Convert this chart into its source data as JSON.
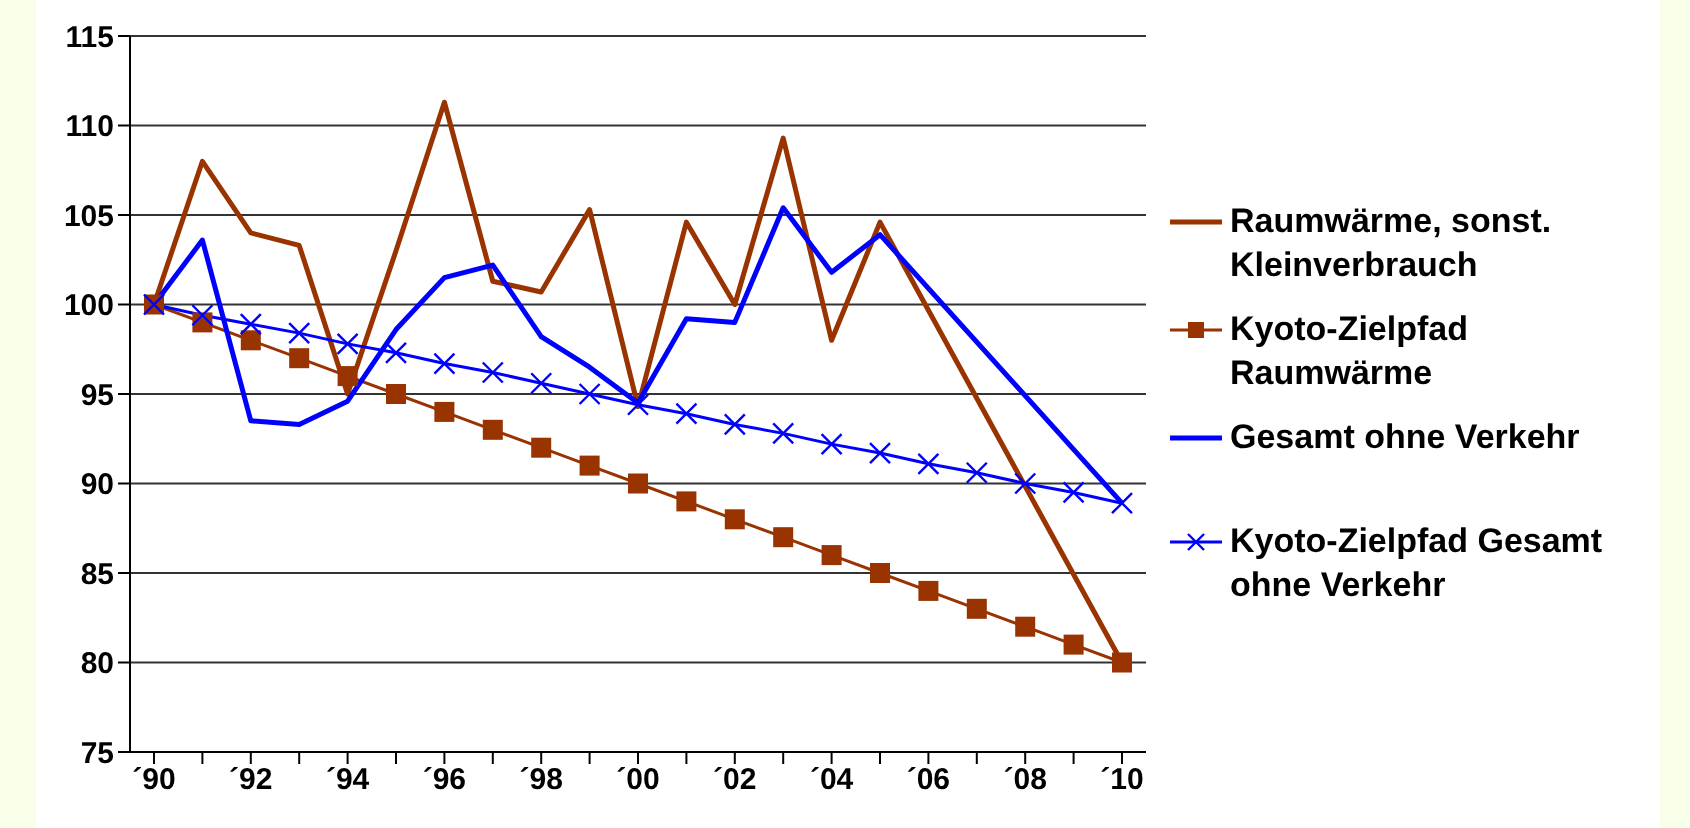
{
  "chart_data": {
    "type": "line",
    "categories": [
      "´90",
      null,
      "´92",
      null,
      "´94",
      null,
      "´96",
      null,
      "´98",
      null,
      "´00",
      null,
      "´02",
      null,
      "´04",
      null,
      "´06",
      null,
      "´08",
      null,
      "´10"
    ],
    "series": [
      {
        "name": "Raumwärme, sonst. Kleinverbrauch",
        "color": "#993300",
        "marker": "none",
        "values": [
          100,
          108,
          104,
          103.3,
          95,
          103,
          111.3,
          101.3,
          100.7,
          105.3,
          94.3,
          104.6,
          100,
          109.3,
          98,
          104.6,
          null,
          null,
          null,
          null,
          80
        ]
      },
      {
        "name": "Kyoto-Zielpfad Raumwärme",
        "color": "#993300",
        "marker": "square",
        "values": [
          100,
          99,
          98,
          97,
          96,
          95,
          94,
          93,
          92,
          91,
          90,
          89,
          88,
          87,
          86,
          85,
          84,
          83,
          82,
          81,
          80
        ]
      },
      {
        "name": "Gesamt ohne Verkehr",
        "color": "#0000ff",
        "marker": "none",
        "values": [
          100,
          103.6,
          93.5,
          93.3,
          94.6,
          98.6,
          101.5,
          102.2,
          98.2,
          96.5,
          94.5,
          99.2,
          99,
          105.4,
          101.8,
          103.9,
          null,
          null,
          null,
          null,
          88.9
        ]
      },
      {
        "name": "Kyoto-Zielpfad Gesamt ohne Verkehr",
        "color": "#0000ff",
        "marker": "cross",
        "values": [
          100,
          99.4,
          98.9,
          98.4,
          97.8,
          97.3,
          96.7,
          96.2,
          95.6,
          95,
          94.4,
          93.9,
          93.3,
          92.8,
          92.2,
          91.7,
          91.1,
          90.6,
          90,
          89.5,
          88.9
        ]
      }
    ],
    "ylim": [
      75,
      115
    ],
    "yticks": [
      75,
      80,
      85,
      90,
      95,
      100,
      105,
      110,
      115
    ],
    "grid": "y",
    "legend": "right"
  }
}
